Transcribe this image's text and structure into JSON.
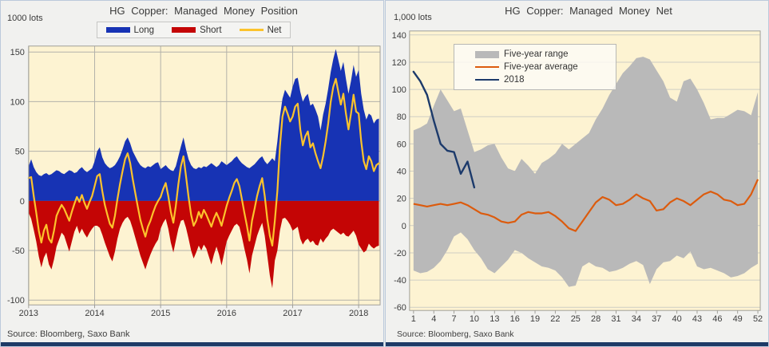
{
  "chart_data": [
    {
      "type": "area",
      "title": "HG Copper: Managed Money Position",
      "units_label": "1000 lots",
      "source": "Source: Bloomberg, Saxo Bank",
      "x_start": 2013.0,
      "x_step_years": 0.03846,
      "xlim": [
        2013.0,
        2018.35
      ],
      "ylim": [
        -105,
        155
      ],
      "x_ticks": [
        2013,
        2014,
        2015,
        2016,
        2017,
        2018
      ],
      "y_ticks": [
        150,
        100,
        50,
        0,
        -50,
        -100
      ],
      "grid": true,
      "legend_position": "top-center",
      "colors": {
        "plot_bg": "#fdf3d2",
        "grid": "#b3b2aa",
        "frame": "#a09f98"
      },
      "legend": [
        {
          "label": "Long",
          "color": "#1733b4"
        },
        {
          "label": "Short",
          "color": "#c40505"
        },
        {
          "label": "Net",
          "color": "#fcc32c"
        }
      ],
      "series": {
        "long": [
          35,
          42,
          34,
          29,
          26,
          25,
          27,
          28,
          26,
          27,
          29,
          31,
          30,
          28,
          27,
          29,
          31,
          30,
          28,
          29,
          32,
          34,
          31,
          29,
          31,
          33,
          40,
          50,
          54,
          44,
          38,
          35,
          33,
          34,
          36,
          40,
          45,
          52,
          60,
          64,
          58,
          50,
          45,
          40,
          36,
          34,
          33,
          35,
          34,
          36,
          38,
          39,
          32,
          34,
          36,
          33,
          31,
          30,
          35,
          45,
          55,
          64,
          52,
          42,
          36,
          33,
          32,
          34,
          33,
          35,
          34,
          36,
          38,
          36,
          34,
          36,
          40,
          38,
          36,
          38,
          40,
          43,
          45,
          41,
          38,
          36,
          34,
          33,
          35,
          37,
          40,
          43,
          45,
          40,
          37,
          40,
          43,
          40,
          60,
          85,
          103,
          112,
          108,
          104,
          115,
          123,
          124,
          110,
          100,
          105,
          108,
          96,
          98,
          92,
          85,
          71,
          87,
          98,
          113,
          130,
          143,
          153,
          142,
          131,
          140,
          123,
          108,
          121,
          137,
          125,
          132,
          108,
          92,
          82,
          88,
          86,
          78,
          82,
          83
        ],
        "short": [
          -12,
          -18,
          -29,
          -41,
          -56,
          -67,
          -57,
          -52,
          -64,
          -69,
          -59,
          -46,
          -39,
          -32,
          -35,
          -43,
          -51,
          -41,
          -31,
          -25,
          -33,
          -28,
          -33,
          -37,
          -32,
          -28,
          -25,
          -25,
          -27,
          -34,
          -42,
          -49,
          -56,
          -61,
          -51,
          -38,
          -28,
          -22,
          -18,
          -16,
          -20,
          -28,
          -37,
          -46,
          -55,
          -62,
          -69,
          -61,
          -54,
          -48,
          -43,
          -39,
          -28,
          -22,
          -18,
          -28,
          -42,
          -52,
          -40,
          -28,
          -20,
          -19,
          -27,
          -38,
          -50,
          -58,
          -52,
          -45,
          -50,
          -44,
          -48,
          -56,
          -64,
          -54,
          -46,
          -54,
          -65,
          -53,
          -41,
          -35,
          -30,
          -25,
          -23,
          -26,
          -36,
          -48,
          -59,
          -73,
          -55,
          -45,
          -35,
          -28,
          -22,
          -35,
          -55,
          -75,
          -88,
          -60,
          -50,
          -30,
          -18,
          -17,
          -20,
          -24,
          -30,
          -28,
          -26,
          -38,
          -44,
          -40,
          -38,
          -42,
          -40,
          -44,
          -45,
          -38,
          -42,
          -38,
          -35,
          -30,
          -28,
          -30,
          -32,
          -34,
          -32,
          -35,
          -36,
          -33,
          -30,
          -35,
          -44,
          -48,
          -52,
          -50,
          -43,
          -46,
          -48,
          -46,
          -45
        ],
        "net": [
          23,
          24,
          5,
          -12,
          -30,
          -42,
          -30,
          -24,
          -38,
          -42,
          -30,
          -15,
          -9,
          -4,
          -8,
          -14,
          -20,
          -11,
          -3,
          4,
          -1,
          6,
          -2,
          -8,
          -1,
          5,
          15,
          25,
          27,
          10,
          -4,
          -14,
          -23,
          -27,
          -15,
          2,
          17,
          30,
          42,
          48,
          38,
          22,
          8,
          -6,
          -19,
          -28,
          -36,
          -26,
          -20,
          -12,
          -5,
          0,
          4,
          12,
          18,
          5,
          -11,
          -22,
          -5,
          17,
          35,
          45,
          25,
          4,
          -14,
          -25,
          -20,
          -11,
          -17,
          -9,
          -14,
          -20,
          -26,
          -18,
          -12,
          -18,
          -25,
          -15,
          -5,
          3,
          10,
          18,
          22,
          15,
          2,
          -12,
          -25,
          -40,
          -20,
          -8,
          5,
          15,
          23,
          5,
          -18,
          -35,
          -45,
          -20,
          10,
          55,
          85,
          95,
          88,
          80,
          85,
          95,
          98,
          72,
          56,
          65,
          70,
          54,
          58,
          48,
          40,
          33,
          45,
          60,
          78,
          100,
          115,
          123,
          110,
          97,
          108,
          88,
          72,
          88,
          107,
          90,
          88,
          60,
          40,
          32,
          45,
          40,
          30,
          36,
          38
        ]
      }
    },
    {
      "type": "line",
      "title": "HG Copper: Managed Money Net",
      "units_label": "1,000 lots",
      "source": "Source: Bloomberg,  Saxo Bank",
      "x_weeks": [
        1,
        52
      ],
      "ylim": [
        -62,
        143
      ],
      "x_ticks": [
        1,
        4,
        7,
        10,
        13,
        16,
        19,
        22,
        25,
        28,
        31,
        34,
        37,
        40,
        43,
        46,
        49,
        52
      ],
      "y_ticks": [
        140,
        120,
        100,
        80,
        60,
        40,
        20,
        0,
        -20,
        -40,
        -60
      ],
      "grid": true,
      "legend_position": "top-left",
      "colors": {
        "plot_bg": "#fdf3d2",
        "grid": "#cfcec4",
        "frame": "#a09f98"
      },
      "legend": [
        {
          "label": "Five-year range",
          "color": "#b9b9b9"
        },
        {
          "label": "Five-year average",
          "color": "#dc5b0d"
        },
        {
          "label": "2018",
          "color": "#1c3a6b"
        }
      ],
      "series": {
        "range_upper": [
          70,
          72,
          75,
          88,
          100,
          92,
          84,
          86,
          70,
          54,
          56,
          59,
          60,
          50,
          42,
          40,
          49,
          44,
          38,
          46,
          49,
          53,
          60,
          56,
          60,
          64,
          68,
          78,
          86,
          96,
          104,
          112,
          117,
          123,
          124,
          122,
          114,
          106,
          94,
          91,
          106,
          108,
          100,
          90,
          78,
          79,
          79,
          82,
          85,
          84,
          81,
          98
        ],
        "range_lower": [
          -33,
          -35,
          -34,
          -31,
          -26,
          -18,
          -8,
          -5,
          -10,
          -18,
          -24,
          -32,
          -35,
          -30,
          -25,
          -18,
          -20,
          -24,
          -27,
          -30,
          -31,
          -33,
          -38,
          -45,
          -44,
          -30,
          -27,
          -30,
          -31,
          -34,
          -33,
          -31,
          -28,
          -26,
          -29,
          -43,
          -32,
          -27,
          -26,
          -22,
          -24,
          -19,
          -30,
          -32,
          -31,
          -33,
          -35,
          -38,
          -37,
          -35,
          -31,
          -28
        ],
        "five_year_average": [
          16,
          15,
          14,
          15,
          16,
          15,
          16,
          17,
          15,
          12,
          9,
          8,
          6,
          3,
          2,
          3,
          8,
          10,
          9,
          9,
          10,
          7,
          3,
          -2,
          -4,
          3,
          10,
          17,
          21,
          19,
          15,
          16,
          19,
          23,
          20,
          18,
          11,
          12,
          17,
          20,
          18,
          15,
          19,
          23,
          25,
          23,
          19,
          18,
          15,
          16,
          23,
          34
        ],
        "y2018_weeks": [
          1,
          2,
          3,
          4,
          5,
          6,
          7,
          8,
          9,
          10
        ],
        "y2018": [
          113,
          106,
          96,
          77,
          60,
          55,
          54,
          38,
          47,
          28
        ]
      }
    }
  ],
  "frame": {
    "panel_bg": "#f1f1ef",
    "panel_border": "#bccadb",
    "accent_bar_color": "#1e3a66"
  }
}
